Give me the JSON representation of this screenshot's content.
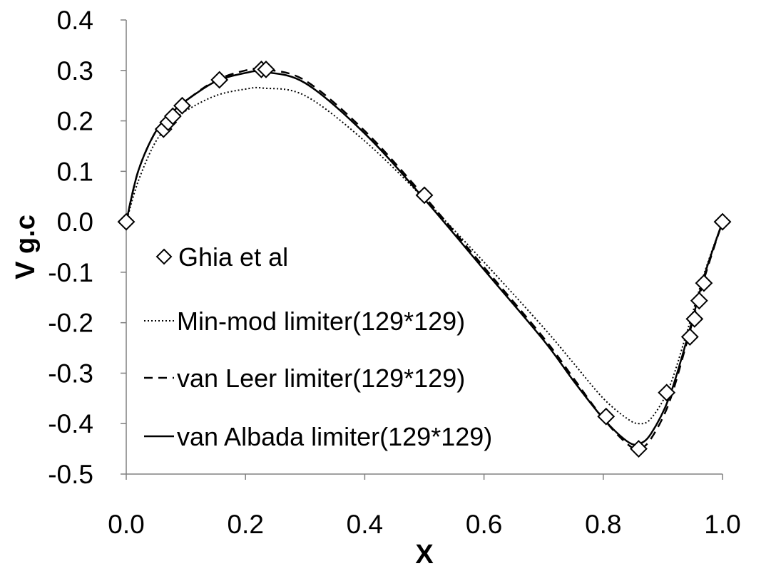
{
  "chart_data": {
    "type": "line",
    "title": "",
    "xlabel": "X",
    "ylabel": "V g.c",
    "xlim": [
      0.0,
      1.0
    ],
    "ylim": [
      -0.5,
      0.4
    ],
    "x_ticks": [
      "0.0",
      "0.2",
      "0.4",
      "0.6",
      "0.8",
      "1.0"
    ],
    "y_ticks": [
      "0.4",
      "0.3",
      "0.2",
      "0.1",
      "0.0",
      "-0.1",
      "-0.2",
      "-0.3",
      "-0.4",
      "-0.5"
    ],
    "grid": false,
    "legend_position": "left-center",
    "series": [
      {
        "name": "Ghia et al",
        "style": "markers",
        "marker": "diamond",
        "color": "#000000",
        "x": [
          0.0,
          0.0625,
          0.0703,
          0.0781,
          0.0938,
          0.1563,
          0.2266,
          0.2344,
          0.5,
          0.8047,
          0.8594,
          0.9063,
          0.9453,
          0.9531,
          0.9609,
          0.9688,
          1.0
        ],
        "y": [
          0.0,
          0.1836,
          0.1971,
          0.2092,
          0.2301,
          0.2813,
          0.302,
          0.302,
          0.0526,
          -0.3859,
          -0.4499,
          -0.3386,
          -0.2281,
          -0.1925,
          -0.1564,
          -0.1215,
          0.0
        ]
      },
      {
        "name": "Min-mod limiter(129*129)",
        "style": "dotted",
        "color": "#000000",
        "x": [
          0.0,
          0.02,
          0.05,
          0.08,
          0.1,
          0.15,
          0.2,
          0.23,
          0.3,
          0.4,
          0.5,
          0.6,
          0.7,
          0.75,
          0.8,
          0.84,
          0.86,
          0.88,
          0.91,
          0.94,
          0.97,
          1.0
        ],
        "y": [
          0.0,
          0.08,
          0.16,
          0.2,
          0.22,
          0.25,
          0.263,
          0.265,
          0.25,
          0.16,
          0.045,
          -0.08,
          -0.21,
          -0.28,
          -0.35,
          -0.39,
          -0.4,
          -0.39,
          -0.33,
          -0.22,
          -0.1,
          0.0
        ]
      },
      {
        "name": "van Leer limiter(129*129)",
        "style": "dashed",
        "color": "#000000",
        "x": [
          0.0,
          0.02,
          0.05,
          0.08,
          0.1,
          0.15,
          0.2,
          0.23,
          0.3,
          0.4,
          0.5,
          0.6,
          0.7,
          0.75,
          0.8,
          0.84,
          0.86,
          0.88,
          0.91,
          0.94,
          0.97,
          1.0
        ],
        "y": [
          0.0,
          0.1,
          0.18,
          0.22,
          0.24,
          0.28,
          0.3,
          0.302,
          0.28,
          0.18,
          0.05,
          -0.09,
          -0.23,
          -0.31,
          -0.39,
          -0.44,
          -0.45,
          -0.43,
          -0.36,
          -0.24,
          -0.11,
          0.0
        ]
      },
      {
        "name": "van Albada limiter(129*129)",
        "style": "solid",
        "color": "#000000",
        "x": [
          0.0,
          0.02,
          0.05,
          0.08,
          0.1,
          0.15,
          0.2,
          0.23,
          0.3,
          0.4,
          0.5,
          0.6,
          0.7,
          0.75,
          0.8,
          0.84,
          0.86,
          0.88,
          0.91,
          0.94,
          0.97,
          1.0
        ],
        "y": [
          0.0,
          0.1,
          0.18,
          0.22,
          0.24,
          0.278,
          0.295,
          0.297,
          0.275,
          0.175,
          0.045,
          -0.095,
          -0.235,
          -0.315,
          -0.39,
          -0.435,
          -0.44,
          -0.42,
          -0.35,
          -0.235,
          -0.105,
          0.0
        ]
      }
    ]
  }
}
